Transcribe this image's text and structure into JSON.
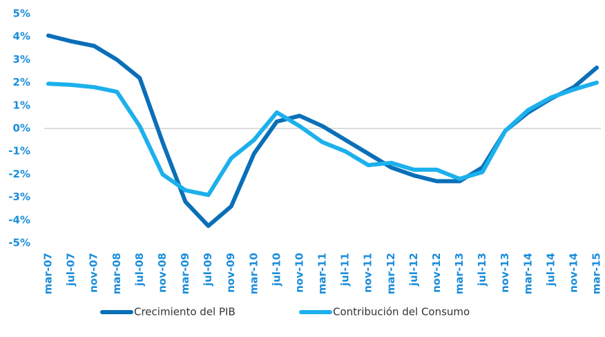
{
  "chart_data": {
    "type": "line",
    "categories": [
      "mar-07",
      "jul-07",
      "nov-07",
      "mar-08",
      "jul-08",
      "nov-08",
      "mar-09",
      "jul-09",
      "nov-09",
      "mar-10",
      "jul-10",
      "nov-10",
      "mar-11",
      "jul-11",
      "nov-11",
      "mar-12",
      "jul-12",
      "nov-12",
      "mar-13",
      "jul-13",
      "nov-13",
      "mar-14",
      "jul-14",
      "nov-14",
      "mar-15"
    ],
    "series": [
      {
        "name": "Crecimiento del PIB",
        "color": "#0b6fb8",
        "values": [
          4.05,
          3.8,
          3.6,
          3.0,
          2.2,
          -0.6,
          -3.2,
          -4.25,
          -3.4,
          -1.1,
          0.3,
          0.55,
          0.1,
          -0.5,
          -1.1,
          -1.7,
          -2.05,
          -2.3,
          -2.3,
          -1.7,
          -0.1,
          0.7,
          1.3,
          1.8,
          2.65
        ]
      },
      {
        "name": "Contribución del Consumo",
        "color": "#1cb0ec",
        "values": [
          1.95,
          1.9,
          1.8,
          1.6,
          0.1,
          -2.0,
          -2.7,
          -2.9,
          -1.3,
          -0.5,
          0.7,
          0.1,
          -0.6,
          -1.0,
          -1.6,
          -1.5,
          -1.8,
          -1.8,
          -2.2,
          -1.9,
          -0.1,
          0.8,
          1.35,
          1.7,
          2.0
        ]
      }
    ],
    "ylim": [
      -5,
      5
    ],
    "yticks": [
      {
        "value": -5,
        "label": "-5%"
      },
      {
        "value": -4,
        "label": "-4%"
      },
      {
        "value": -3,
        "label": "-3%"
      },
      {
        "value": -2,
        "label": "-2%"
      },
      {
        "value": -1,
        "label": "-1%"
      },
      {
        "value": 0,
        "label": "0%"
      },
      {
        "value": 1,
        "label": "1%"
      },
      {
        "value": 2,
        "label": "2%"
      },
      {
        "value": 3,
        "label": "3%"
      },
      {
        "value": 4,
        "label": "4%"
      },
      {
        "value": 5,
        "label": "5%"
      }
    ],
    "grid": false,
    "legend": "bottom"
  }
}
